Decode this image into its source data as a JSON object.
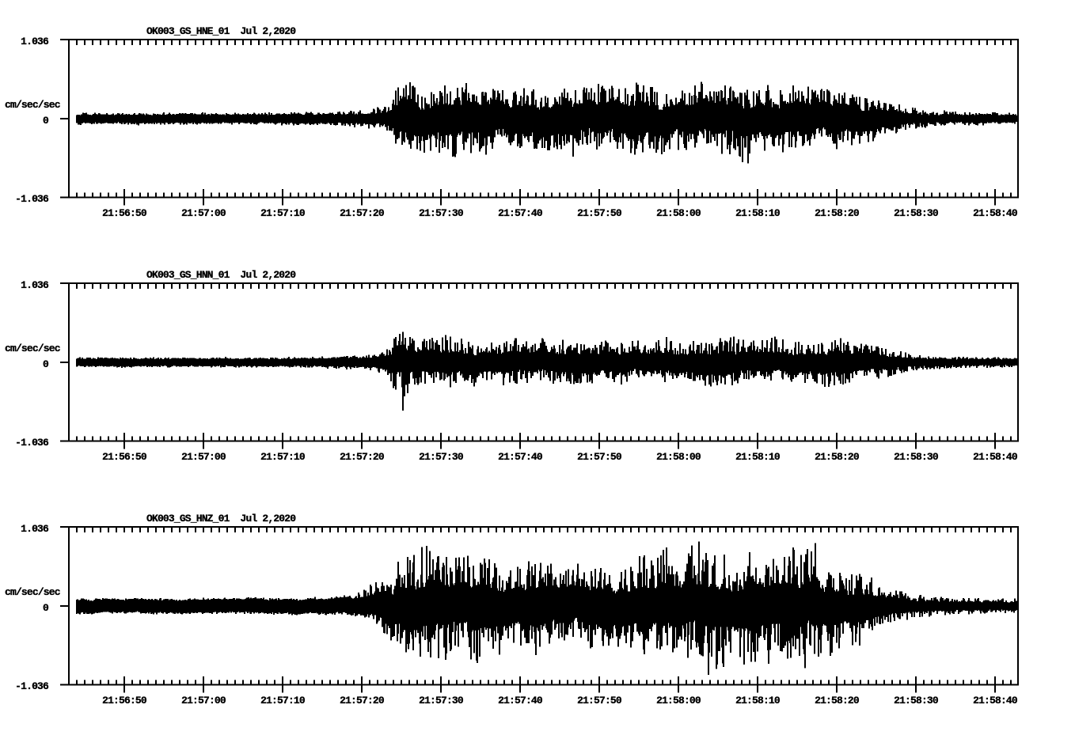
{
  "page": {
    "background": "#ffffff",
    "ink": "#000000",
    "description": "Three-channel strong-motion seismogram display for station OK003 (network GS, location 01) recorded Jul 2, 2020"
  },
  "chart_data": [
    {
      "type": "line",
      "subtype": "seismic-waveform",
      "title": "OK003_GS_HNE_01  Jul 2,2020",
      "station": "OK003",
      "network": "GS",
      "channel": "HNE",
      "location_code": "01",
      "date": "Jul 2,2020",
      "ylabel": "cm/sec/sec",
      "yticks": [
        "1.036",
        "0",
        "-1.036"
      ],
      "ylim": [
        -1.036,
        1.036
      ],
      "xticklabels": [
        "21:56:50",
        "21:57:00",
        "21:57:10",
        "21:57:20",
        "21:57:30",
        "21:57:40",
        "21:57:50",
        "21:58:00",
        "21:58:10",
        "21:58:20",
        "21:58:30",
        "21:58:40"
      ],
      "x_seconds_per_tick": 10,
      "envelope_cm_s2": [
        [
          1.0,
          0.05,
          0.075,
          0.075
        ],
        [
          20.0,
          0.05,
          0.078,
          0.078
        ],
        [
          33.0,
          0.052,
          0.085,
          0.085
        ],
        [
          36.0,
          0.055,
          0.11,
          0.11
        ],
        [
          39.0,
          0.06,
          0.16,
          0.15
        ],
        [
          40.7,
          0.078,
          0.2,
          0.19
        ],
        [
          41.2,
          0.146,
          0.52,
          0.42
        ],
        [
          43.0,
          0.157,
          0.48,
          0.4
        ],
        [
          45.5,
          0.157,
          0.4,
          0.42
        ],
        [
          47.5,
          0.168,
          0.47,
          0.45
        ],
        [
          51.0,
          0.168,
          0.42,
          0.5
        ],
        [
          56.0,
          0.157,
          0.4,
          0.43
        ],
        [
          60.0,
          0.168,
          0.44,
          0.4
        ],
        [
          64.0,
          0.157,
          0.4,
          0.45
        ],
        [
          68.0,
          0.168,
          0.46,
          0.4
        ],
        [
          73.5,
          0.168,
          0.5,
          0.43
        ],
        [
          77.0,
          0.157,
          0.42,
          0.46
        ],
        [
          80.0,
          0.168,
          0.45,
          0.42
        ],
        [
          84.0,
          0.157,
          0.42,
          0.52
        ],
        [
          88.0,
          0.168,
          0.46,
          0.44
        ],
        [
          93.0,
          0.168,
          0.48,
          0.42
        ],
        [
          97.0,
          0.157,
          0.4,
          0.44
        ],
        [
          101.0,
          0.123,
          0.31,
          0.3
        ],
        [
          104.0,
          0.09,
          0.21,
          0.2
        ],
        [
          106.0,
          0.06,
          0.14,
          0.14
        ],
        [
          109.0,
          0.048,
          0.105,
          0.105
        ],
        [
          112.0,
          0.045,
          0.095,
          0.095
        ],
        [
          120.0,
          0.042,
          0.085,
          0.085
        ]
      ]
    },
    {
      "type": "line",
      "subtype": "seismic-waveform",
      "title": "OK003_GS_HNN_01  Jul 2,2020",
      "station": "OK003",
      "network": "GS",
      "channel": "HNN",
      "location_code": "01",
      "date": "Jul 2,2020",
      "ylabel": "cm/sec/sec",
      "yticks": [
        "1.036",
        "0",
        "-1.036"
      ],
      "ylim": [
        -1.036,
        1.036
      ],
      "xticklabels": [
        "21:56:50",
        "21:57:00",
        "21:57:10",
        "21:57:20",
        "21:57:30",
        "21:57:40",
        "21:57:50",
        "21:58:00",
        "21:58:10",
        "21:58:20",
        "21:58:30",
        "21:58:40"
      ],
      "x_seconds_per_tick": 10,
      "envelope_cm_s2": [
        [
          1.0,
          0.045,
          0.062,
          0.062
        ],
        [
          30.0,
          0.045,
          0.066,
          0.066
        ],
        [
          36.0,
          0.052,
          0.095,
          0.095
        ],
        [
          39.0,
          0.058,
          0.125,
          0.125
        ],
        [
          40.6,
          0.09,
          0.22,
          0.22
        ],
        [
          41.3,
          0.146,
          0.48,
          0.5
        ],
        [
          42.1,
          0.146,
          0.4,
          0.52
        ],
        [
          43.5,
          0.123,
          0.33,
          0.37
        ],
        [
          46.0,
          0.118,
          0.31,
          0.3
        ],
        [
          47.5,
          0.123,
          0.4,
          0.36
        ],
        [
          50.0,
          0.112,
          0.32,
          0.3
        ],
        [
          55.0,
          0.106,
          0.28,
          0.295
        ],
        [
          60.0,
          0.112,
          0.305,
          0.285
        ],
        [
          65.0,
          0.106,
          0.275,
          0.3
        ],
        [
          70.0,
          0.112,
          0.3,
          0.285
        ],
        [
          75.0,
          0.106,
          0.285,
          0.265
        ],
        [
          80.0,
          0.112,
          0.31,
          0.3
        ],
        [
          85.0,
          0.106,
          0.33,
          0.285
        ],
        [
          88.0,
          0.112,
          0.36,
          0.3
        ],
        [
          92.0,
          0.106,
          0.305,
          0.285
        ],
        [
          96.0,
          0.112,
          0.32,
          0.3
        ],
        [
          100.0,
          0.101,
          0.26,
          0.255
        ],
        [
          103.0,
          0.078,
          0.2,
          0.2
        ],
        [
          106.0,
          0.052,
          0.13,
          0.13
        ],
        [
          109.0,
          0.045,
          0.092,
          0.092
        ],
        [
          112.0,
          0.04,
          0.072,
          0.072
        ],
        [
          120.0,
          0.038,
          0.062,
          0.062
        ]
      ],
      "notable_spikes_cm_s2": [
        [
          42.2,
          -0.63
        ]
      ]
    },
    {
      "type": "line",
      "subtype": "seismic-waveform",
      "title": "OK003_GS_HNZ_01  Jul 2,2020",
      "station": "OK003",
      "network": "GS",
      "channel": "HNZ",
      "location_code": "01",
      "date": "Jul 2,2020",
      "ylabel": "cm/sec/sec",
      "yticks": [
        "1.036",
        "0",
        "-1.036"
      ],
      "ylim": [
        -1.036,
        1.036
      ],
      "xticklabels": [
        "21:56:50",
        "21:57:00",
        "21:57:10",
        "21:57:20",
        "21:57:30",
        "21:57:40",
        "21:57:50",
        "21:58:00",
        "21:58:10",
        "21:58:20",
        "21:58:30",
        "21:58:40"
      ],
      "x_seconds_per_tick": 10,
      "envelope_cm_s2": [
        [
          1.0,
          0.078,
          0.1,
          0.1
        ],
        [
          25.0,
          0.081,
          0.105,
          0.105
        ],
        [
          33.0,
          0.087,
          0.12,
          0.12
        ],
        [
          36.0,
          0.095,
          0.15,
          0.15
        ],
        [
          39.0,
          0.123,
          0.3,
          0.25
        ],
        [
          41.0,
          0.179,
          0.52,
          0.45
        ],
        [
          43.0,
          0.224,
          0.7,
          0.62
        ],
        [
          45.0,
          0.235,
          0.78,
          0.74
        ],
        [
          47.0,
          0.235,
          0.7,
          0.78
        ],
        [
          49.0,
          0.224,
          0.74,
          0.68
        ],
        [
          51.0,
          0.218,
          0.62,
          0.85
        ],
        [
          53.0,
          0.218,
          0.64,
          0.73
        ],
        [
          55.0,
          0.207,
          0.57,
          0.62
        ],
        [
          58.0,
          0.207,
          0.6,
          0.57
        ],
        [
          61.0,
          0.207,
          0.62,
          0.57
        ],
        [
          64.0,
          0.196,
          0.52,
          0.54
        ],
        [
          67.0,
          0.196,
          0.54,
          0.6
        ],
        [
          70.0,
          0.207,
          0.57,
          0.54
        ],
        [
          73.0,
          0.213,
          0.7,
          0.62
        ],
        [
          75.0,
          0.218,
          0.82,
          0.67
        ],
        [
          77.0,
          0.218,
          0.67,
          0.72
        ],
        [
          80.0,
          0.224,
          0.78,
          0.8
        ],
        [
          83.0,
          0.218,
          0.67,
          0.87
        ],
        [
          86.0,
          0.218,
          0.72,
          0.77
        ],
        [
          89.0,
          0.224,
          0.74,
          0.82
        ],
        [
          92.0,
          0.224,
          0.8,
          0.9
        ],
        [
          94.0,
          0.218,
          0.82,
          0.77
        ],
        [
          96.0,
          0.202,
          0.62,
          0.67
        ],
        [
          98.0,
          0.174,
          0.52,
          0.54
        ],
        [
          101.0,
          0.134,
          0.39,
          0.41
        ],
        [
          104.0,
          0.101,
          0.25,
          0.26
        ],
        [
          107.0,
          0.065,
          0.155,
          0.155
        ],
        [
          110.0,
          0.055,
          0.128,
          0.128
        ],
        [
          114.0,
          0.05,
          0.108,
          0.108
        ],
        [
          120.0,
          0.047,
          0.097,
          0.097
        ]
      ]
    }
  ]
}
